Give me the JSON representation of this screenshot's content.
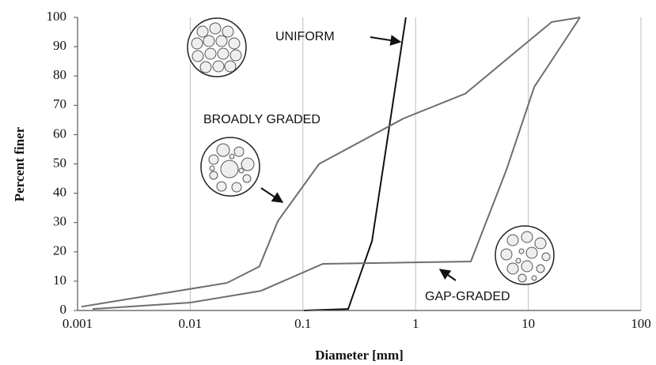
{
  "chart_data": {
    "type": "line",
    "x_scale": "log",
    "grid": "x",
    "xlabel": "Diameter [mm]",
    "ylabel": "Percent finer",
    "xlim": [
      0.001,
      100
    ],
    "xticks": [
      0.001,
      0.01,
      0.1,
      1,
      10,
      100
    ],
    "ylim": [
      0,
      100
    ],
    "yticks": [
      0,
      10,
      20,
      30,
      40,
      50,
      60,
      70,
      80,
      90,
      100
    ],
    "series": [
      {
        "name": "UNIFORM",
        "color": "#111111",
        "x": [
          0.102,
          0.252,
          0.41,
          0.82
        ],
        "values": [
          0,
          0.5,
          23.7,
          100
        ]
      },
      {
        "name": "BROADLY GRADED",
        "color": "#6e6e6e",
        "x": [
          0.00108,
          0.0212,
          0.041,
          0.06,
          0.139,
          0.78,
          2.76,
          16.1,
          28.8
        ],
        "values": [
          1.3,
          9.4,
          15,
          30.5,
          50,
          65.5,
          74,
          98.4,
          100
        ]
      },
      {
        "name": "GAP-GRADED",
        "color": "#6e6e6e",
        "x": [
          0.00136,
          0.01,
          0.0425,
          0.15,
          3.09,
          6.4,
          11.3,
          28.8
        ],
        "values": [
          0.5,
          2.7,
          6.7,
          15.9,
          16.7,
          48,
          76.3,
          100
        ]
      }
    ]
  }
}
